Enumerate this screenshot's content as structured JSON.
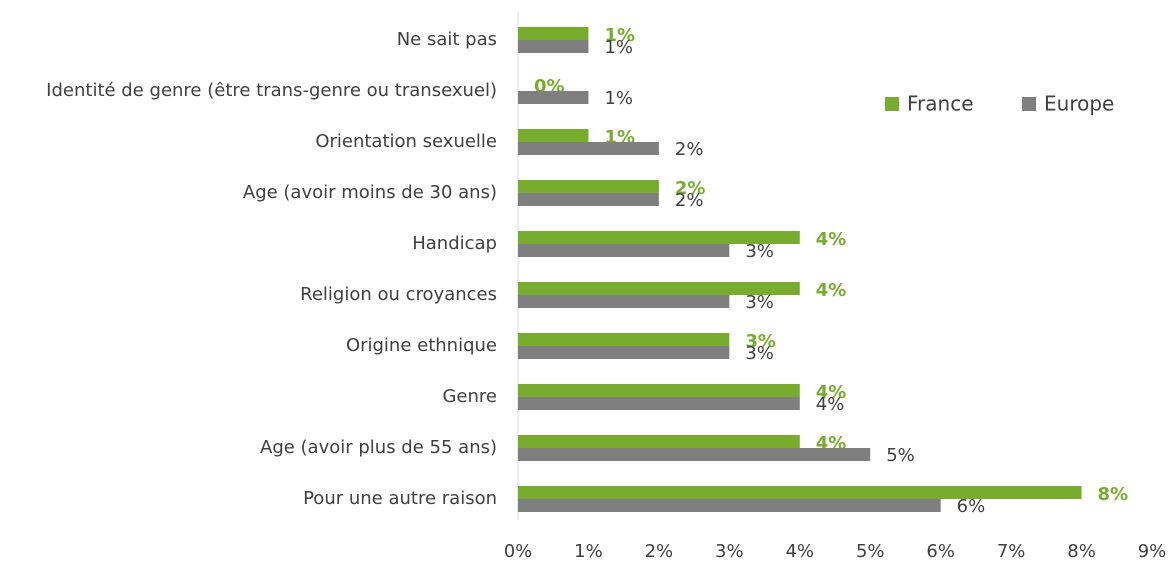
{
  "chart_data": {
    "type": "bar",
    "orientation": "horizontal",
    "categories": [
      "Ne sait pas",
      "Identité de genre (être trans-genre ou transexuel)",
      "Orientation sexuelle",
      "Age (avoir moins de 30 ans)",
      "Handicap",
      "Religion ou croyances",
      "Origine ethnique",
      "Genre",
      "Age (avoir plus de 55 ans)",
      "Pour une autre raison"
    ],
    "series": [
      {
        "name": "France",
        "color": "#78ac2e",
        "values": [
          1,
          0,
          1,
          2,
          4,
          4,
          3,
          4,
          4,
          8
        ],
        "value_labels": [
          "1%",
          "0%",
          "1%",
          "2%",
          "4%",
          "4%",
          "3%",
          "4%",
          "4%",
          "8%"
        ]
      },
      {
        "name": "Europe",
        "color": "#7f7f7f",
        "values": [
          1,
          1,
          2,
          2,
          3,
          3,
          3,
          4,
          5,
          6
        ],
        "value_labels": [
          "1%",
          "1%",
          "2%",
          "2%",
          "3%",
          "3%",
          "3%",
          "4%",
          "5%",
          "6%"
        ]
      }
    ],
    "xlim": [
      0,
      9
    ],
    "xticks": [
      {
        "value": 0,
        "label": "0%"
      },
      {
        "value": 1,
        "label": "1%"
      },
      {
        "value": 2,
        "label": "2%"
      },
      {
        "value": 3,
        "label": "3%"
      },
      {
        "value": 4,
        "label": "4%"
      },
      {
        "value": 5,
        "label": "5%"
      },
      {
        "value": 6,
        "label": "6%"
      },
      {
        "value": 7,
        "label": "7%"
      },
      {
        "value": 8,
        "label": "8%"
      },
      {
        "value": 9,
        "label": "9%"
      }
    ],
    "grid": false,
    "legend": "top-right"
  }
}
